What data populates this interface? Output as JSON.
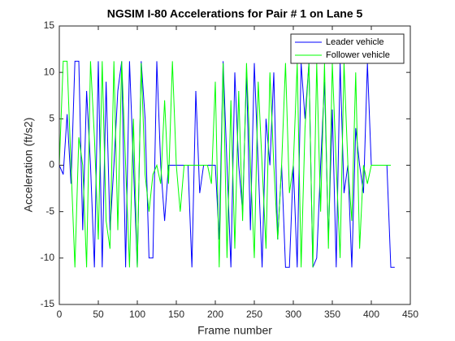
{
  "chart_data": {
    "type": "line",
    "title": "NGSIM I-80 Accelerations for Pair # 1 on Lane 5",
    "x_label": "Frame number",
    "y_label": "Acceleration (ft/s2)",
    "x": [
      0,
      5,
      10,
      15,
      20,
      25,
      30,
      35,
      40,
      45,
      50,
      55,
      60,
      65,
      70,
      75,
      80,
      85,
      90,
      95,
      100,
      105,
      110,
      115,
      120,
      125,
      130,
      135,
      140,
      145,
      150,
      155,
      160,
      165,
      170,
      175,
      180,
      185,
      190,
      195,
      200,
      205,
      210,
      215,
      220,
      225,
      230,
      235,
      240,
      245,
      250,
      255,
      260,
      265,
      270,
      275,
      280,
      285,
      290,
      295,
      300,
      305,
      310,
      315,
      320,
      325,
      330,
      335,
      340,
      345,
      350,
      355,
      360,
      365,
      370,
      375,
      380,
      385,
      390,
      395,
      400,
      405,
      410,
      415,
      420,
      425,
      430
    ],
    "series": [
      {
        "name": "Leader vehicle",
        "color": "#0000ff",
        "values": [
          0,
          -1,
          5.5,
          -2,
          11.2,
          11.2,
          -7,
          8,
          0,
          -11,
          11.2,
          -11,
          9,
          -7,
          0,
          8,
          11.2,
          -11,
          11.2,
          0,
          -11,
          11.2,
          5,
          -10,
          -10,
          11.2,
          0,
          -6,
          0,
          0,
          0,
          0,
          0,
          0,
          -11,
          8,
          -3,
          0,
          0,
          0,
          0,
          -8,
          11.2,
          0,
          -11,
          10,
          0,
          -5,
          10,
          -7,
          11,
          0,
          -11,
          5,
          0,
          10,
          -8,
          0,
          -11,
          -11,
          0,
          -11,
          11,
          5,
          11,
          -11,
          -10,
          0,
          9,
          -8,
          6,
          -11,
          11,
          -3,
          0,
          -11,
          4,
          0,
          -3,
          11,
          0,
          0,
          0,
          0,
          0,
          -11,
          -11
        ]
      },
      {
        "name": "Follower vehicle",
        "color": "#00ff00",
        "values": [
          0,
          11.2,
          11.2,
          0,
          -11,
          3,
          0,
          -11,
          11.2,
          3,
          -8,
          11.2,
          -6,
          -9,
          11.2,
          -7,
          11.2,
          0,
          -11,
          5,
          -11,
          11,
          -1,
          -5,
          -1,
          0,
          -2,
          7,
          -2,
          11.2,
          0,
          -5,
          0,
          0,
          0,
          0,
          0,
          0,
          0,
          -2,
          9,
          -11,
          11,
          -10,
          7,
          -9,
          8,
          -6,
          11,
          0,
          -10,
          9,
          0,
          -9,
          10,
          0,
          -8,
          0,
          11,
          -3,
          0,
          11,
          -11,
          4,
          11,
          -11,
          11,
          -5,
          11,
          -9,
          11,
          0,
          -10,
          11,
          0,
          -6,
          10,
          -9,
          0,
          -2,
          0,
          0,
          0,
          0,
          0,
          0,
          null
        ]
      }
    ],
    "xlim": [
      0,
      450
    ],
    "xticks": [
      0,
      50,
      100,
      150,
      200,
      250,
      300,
      350,
      400,
      450
    ],
    "ylim": [
      -15,
      15
    ],
    "yticks": [
      -15,
      -10,
      -5,
      0,
      5,
      10,
      15
    ],
    "grid": false,
    "legend": "northeast"
  }
}
